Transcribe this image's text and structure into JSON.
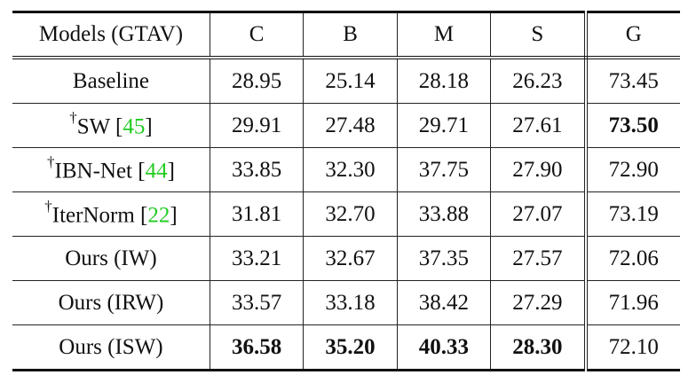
{
  "table": {
    "header": [
      "Models (GTAV)",
      "C",
      "B",
      "M",
      "S",
      "G"
    ],
    "citation_color": "#22cc22",
    "rows": [
      {
        "dagger": null,
        "name": "Baseline",
        "citation": null,
        "values": [
          "28.95",
          "25.14",
          "28.18",
          "26.23",
          "73.45"
        ],
        "bold": []
      },
      {
        "dagger": "†",
        "name": "SW ",
        "citation": {
          "open": "[",
          "number": "45",
          "close": "]"
        },
        "values": [
          "29.91",
          "27.48",
          "29.71",
          "27.61",
          "73.50"
        ],
        "bold": [
          4
        ]
      },
      {
        "dagger": "†",
        "name": "IBN-Net ",
        "citation": {
          "open": "[",
          "number": "44",
          "close": "]"
        },
        "values": [
          "33.85",
          "32.30",
          "37.75",
          "27.90",
          "72.90"
        ],
        "bold": []
      },
      {
        "dagger": "†",
        "name": "IterNorm ",
        "citation": {
          "open": "[",
          "number": "22",
          "close": "]"
        },
        "values": [
          "31.81",
          "32.70",
          "33.88",
          "27.07",
          "73.19"
        ],
        "bold": []
      },
      {
        "dagger": null,
        "name": "Ours (IW)",
        "citation": null,
        "values": [
          "33.21",
          "32.67",
          "37.35",
          "27.57",
          "72.06"
        ],
        "bold": []
      },
      {
        "dagger": null,
        "name": "Ours (IRW)",
        "citation": null,
        "values": [
          "33.57",
          "33.18",
          "38.42",
          "27.29",
          "71.96"
        ],
        "bold": []
      },
      {
        "dagger": null,
        "name": "Ours (ISW)",
        "citation": null,
        "values": [
          "36.58",
          "35.20",
          "40.33",
          "28.30",
          "72.10"
        ],
        "bold": [
          0,
          1,
          2,
          3
        ]
      }
    ]
  }
}
